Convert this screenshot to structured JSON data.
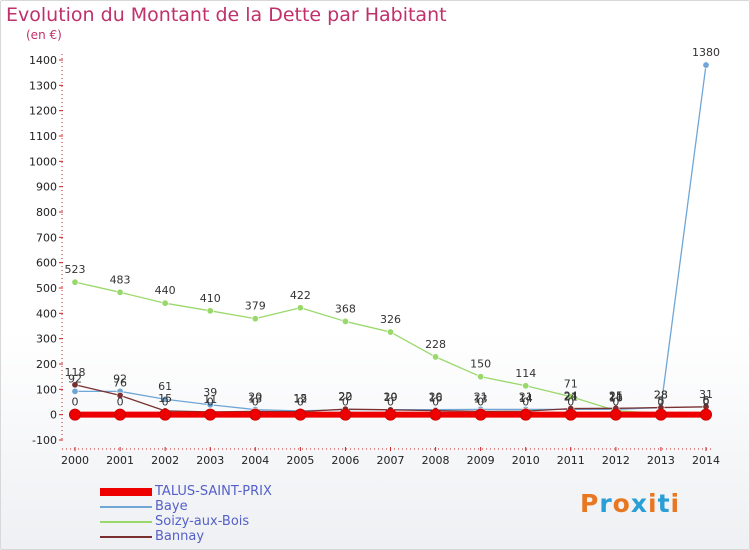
{
  "title": "Evolution du Montant de la Dette par Habitant",
  "subtitle": "(en €)",
  "logo": {
    "text": "Proxiti",
    "letters": [
      {
        "ch": "P",
        "color": "#e87722"
      },
      {
        "ch": "r",
        "color": "#2a9fd6"
      },
      {
        "ch": "o",
        "color": "#e87722"
      },
      {
        "ch": "x",
        "color": "#2a9fd6"
      },
      {
        "ch": "i",
        "color": "#e87722"
      },
      {
        "ch": "t",
        "color": "#2a9fd6"
      },
      {
        "ch": "i",
        "color": "#e87722"
      }
    ]
  },
  "chart_data": {
    "type": "line",
    "x": [
      "2000",
      "2001",
      "2002",
      "2003",
      "2004",
      "2005",
      "2006",
      "2007",
      "2008",
      "2009",
      "2010",
      "2011",
      "2012",
      "2013",
      "2014"
    ],
    "ylim": [
      -100,
      1400
    ],
    "yticks": [
      -100,
      0,
      100,
      200,
      300,
      400,
      500,
      600,
      700,
      800,
      900,
      1000,
      1100,
      1200,
      1300,
      1400
    ],
    "grid": false,
    "legend_position": "bottom-left",
    "series": [
      {
        "name": "TALUS-SAINT-PRIX",
        "color": "#ee0000",
        "width": 6,
        "values": [
          0,
          0,
          0,
          0,
          0,
          0,
          0,
          0,
          0,
          0,
          0,
          0,
          0,
          0,
          0
        ],
        "labels": [
          "0",
          "0",
          "0",
          "0",
          "0",
          "0",
          "0",
          "0",
          "0",
          "0",
          "0",
          "0",
          "0",
          "0",
          "0"
        ]
      },
      {
        "name": "Baye",
        "color": "#6fa6d6",
        "width": 1.3,
        "values": [
          92,
          92,
          61,
          39,
          20,
          15,
          20,
          20,
          20,
          21,
          21,
          21,
          21,
          28,
          1380
        ],
        "labels": [
          "92",
          "92",
          "61",
          "39",
          "20",
          "15",
          "20",
          "20",
          "20",
          "21",
          "21",
          "21",
          "21",
          "28",
          "1380"
        ]
      },
      {
        "name": "Soizy-aux-Bois",
        "color": "#99d86a",
        "width": 1.3,
        "values": [
          523,
          483,
          440,
          410,
          379,
          422,
          368,
          326,
          228,
          150,
          114,
          71,
          16,
          5,
          6
        ],
        "labels": [
          "523",
          "483",
          "440",
          "410",
          "379",
          "422",
          "368",
          "326",
          "228",
          "150",
          "114",
          "71",
          "16",
          "5",
          "6"
        ]
      },
      {
        "name": "Bannay",
        "color": "#7a3030",
        "width": 1.3,
        "values": [
          118,
          76,
          15,
          11,
          13,
          12,
          22,
          19,
          16,
          13,
          14,
          24,
          25,
          28,
          31
        ],
        "labels": [
          "118",
          "76",
          "15",
          "11",
          "13",
          "12",
          "22",
          "19",
          "16",
          "13",
          "14",
          "24",
          "25",
          "28",
          "31"
        ]
      }
    ]
  }
}
